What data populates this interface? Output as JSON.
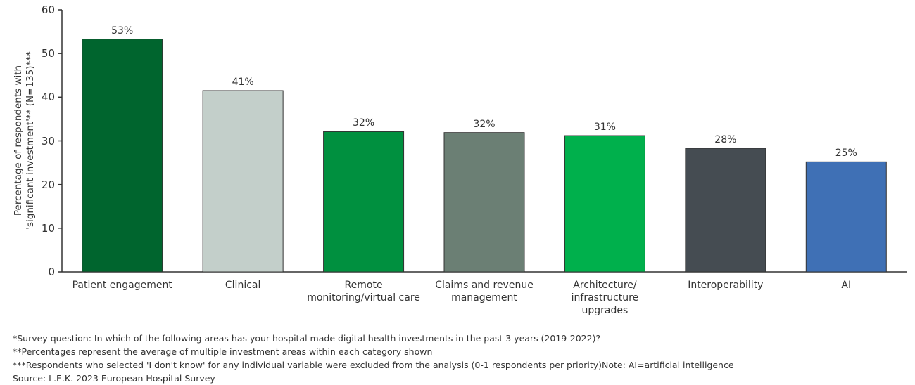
{
  "chart_data": {
    "type": "bar",
    "y_label": "Percentage of respondents with\n'significant investment'**  (N=135)***",
    "categories": [
      "Patient engagement",
      "Clinical",
      "Remote\nmonitoring/virtual care",
      "Claims and revenue\nmanagement",
      "Architecture/\ninfrastructure\nupgrades",
      "Interoperability",
      "AI"
    ],
    "values": [
      53.3,
      41.5,
      32.1,
      31.9,
      31.2,
      28.3,
      25.2
    ],
    "value_labels": [
      "53%",
      "41%",
      "32%",
      "32%",
      "31%",
      "28%",
      "25%"
    ],
    "colors": [
      "#00652e",
      "#c3cfca",
      "#00903f",
      "#6b7f74",
      "#00b04c",
      "#454c52",
      "#3f70b5"
    ],
    "ylim": [
      0,
      60
    ],
    "yticks": [
      0,
      10,
      20,
      30,
      40,
      50,
      60
    ],
    "grid": false,
    "footnotes": [
      "*Survey question: In which of the following areas has your hospital made digital health investments in the past 3 years (2019-2022)?",
      "**Percentages represent the average of multiple investment areas within each category shown",
      "***Respondents who selected 'I don't know' for any individual variable were excluded from the analysis (0-1 respondents per priority)Note: AI=artificial intelligence",
      "Source: L.E.K. 2023 European Hospital Survey"
    ]
  }
}
